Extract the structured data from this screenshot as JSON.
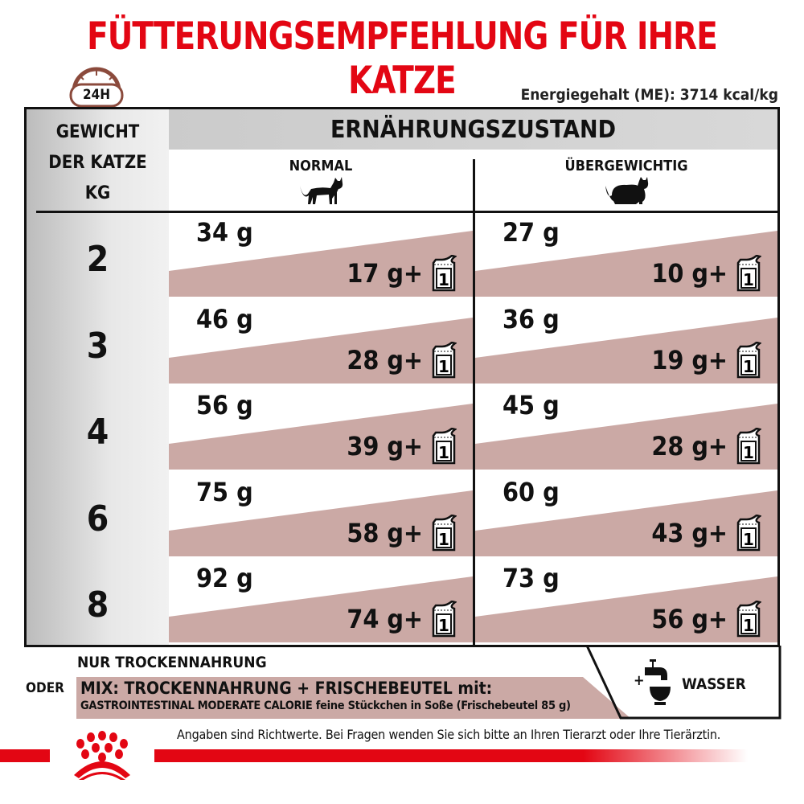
{
  "title": "FÜTTERUNGSEMPFEHLUNG FÜR IHRE KATZE",
  "clock_label": "24H",
  "energy": "Energiegehalt (ME): 3714 kcal/kg",
  "table": {
    "col_header": [
      "GEWICHT",
      "DER KATZE",
      "KG"
    ],
    "state_header": "ERNÄHRUNGSZUSTAND",
    "conditions": [
      "NORMAL",
      "ÜBERGEWICHTIG"
    ],
    "rows": [
      {
        "kg": "2",
        "normal_dry": "34 g",
        "normal_mix": "17 g",
        "over_dry": "27 g",
        "over_mix": "10 g"
      },
      {
        "kg": "3",
        "normal_dry": "46 g",
        "normal_mix": "28 g",
        "over_dry": "36 g",
        "over_mix": "19 g"
      },
      {
        "kg": "4",
        "normal_dry": "56 g",
        "normal_mix": "39 g",
        "over_dry": "45 g",
        "over_mix": "28 g"
      },
      {
        "kg": "6",
        "normal_dry": "75 g",
        "normal_mix": "58 g",
        "over_dry": "60 g",
        "over_mix": "43 g"
      },
      {
        "kg": "8",
        "normal_dry": "92 g",
        "normal_mix": "74 g",
        "over_dry": "73 g",
        "over_mix": "56 g"
      }
    ],
    "plus": "+",
    "pouch_count": "1"
  },
  "legend": {
    "dry_only": "NUR TROCKENNAHRUNG",
    "or": "ODER",
    "mix_title": "MIX: TROCKENNAHRUNG + FRISCHEBEUTEL mit:",
    "mix_detail": "GASTROINTESTINAL MODERATE CALORIE feine Stückchen in Soße (Frischebeutel 85 g)",
    "water_plus": "+",
    "water": "WASSER"
  },
  "note": "Angaben sind Richtwerte. Bei Fragen wenden Sie sich bitte an Ihren Tierarzt oder Ihre Tierärztin.",
  "colors": {
    "brand_red": "#e30613",
    "mix_pink": "#cba9a5",
    "header_gray": "#cfcfcf"
  }
}
